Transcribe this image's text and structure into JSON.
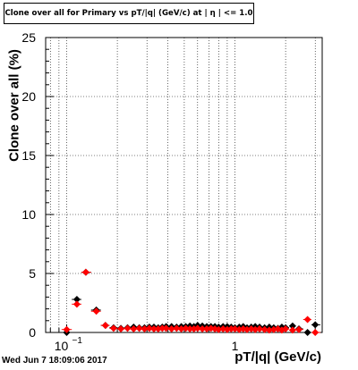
{
  "chart_data": {
    "type": "scatter",
    "title": "Clone  over all for Primary vs pT/|q| (GeV/c) at |  η | <= 1.0",
    "xlabel": "pT/|q| (GeV/c)",
    "ylabel": "Clone  over all (%)",
    "x_scale": "log",
    "xlim": [
      0.075,
      3.3
    ],
    "ylim": [
      0,
      25
    ],
    "grid": true,
    "y_ticks": [
      0,
      5,
      10,
      15,
      20,
      25
    ],
    "x_tick_labels": [
      {
        "value": 0.1,
        "label": "10^-1"
      },
      {
        "value": 1,
        "label": "1"
      }
    ],
    "series": [
      {
        "color": "#000000",
        "marker": "diamond",
        "x": [
          0.1,
          0.115,
          0.13,
          0.15,
          0.17,
          0.19,
          0.21,
          0.23,
          0.25,
          0.27,
          0.29,
          0.31,
          0.33,
          0.35,
          0.37,
          0.39,
          0.42,
          0.45,
          0.48,
          0.51,
          0.54,
          0.57,
          0.6,
          0.64,
          0.68,
          0.72,
          0.76,
          0.8,
          0.85,
          0.9,
          0.95,
          1.0,
          1.06,
          1.12,
          1.18,
          1.25,
          1.32,
          1.4,
          1.5,
          1.6,
          1.7,
          1.8,
          1.9,
          2.0,
          2.2,
          2.4,
          2.7,
          3.0
        ],
        "y": [
          0.0,
          2.8,
          5.1,
          1.9,
          0.6,
          0.4,
          0.35,
          0.4,
          0.45,
          0.4,
          0.4,
          0.45,
          0.45,
          0.4,
          0.45,
          0.5,
          0.5,
          0.45,
          0.5,
          0.5,
          0.55,
          0.5,
          0.6,
          0.55,
          0.5,
          0.5,
          0.5,
          0.45,
          0.5,
          0.5,
          0.45,
          0.4,
          0.45,
          0.5,
          0.4,
          0.45,
          0.5,
          0.45,
          0.4,
          0.45,
          0.4,
          0.35,
          0.45,
          0.4,
          0.55,
          0.3,
          0.0,
          0.65
        ]
      },
      {
        "color": "#ff0000",
        "marker": "diamond",
        "x": [
          0.1,
          0.115,
          0.13,
          0.15,
          0.17,
          0.19,
          0.21,
          0.23,
          0.25,
          0.27,
          0.29,
          0.31,
          0.33,
          0.35,
          0.37,
          0.39,
          0.42,
          0.45,
          0.48,
          0.51,
          0.54,
          0.57,
          0.6,
          0.64,
          0.68,
          0.72,
          0.76,
          0.8,
          0.85,
          0.9,
          0.95,
          1.0,
          1.06,
          1.12,
          1.18,
          1.25,
          1.32,
          1.4,
          1.5,
          1.6,
          1.7,
          1.8,
          1.9,
          2.0,
          2.2,
          2.4,
          2.7,
          3.0
        ],
        "y": [
          0.25,
          2.4,
          5.1,
          1.8,
          0.6,
          0.35,
          0.3,
          0.35,
          0.3,
          0.35,
          0.3,
          0.35,
          0.3,
          0.3,
          0.35,
          0.35,
          0.3,
          0.35,
          0.3,
          0.35,
          0.3,
          0.3,
          0.35,
          0.3,
          0.3,
          0.35,
          0.3,
          0.25,
          0.3,
          0.25,
          0.3,
          0.3,
          0.25,
          0.3,
          0.25,
          0.3,
          0.25,
          0.3,
          0.25,
          0.2,
          0.25,
          0.3,
          0.2,
          0.3,
          0.2,
          0.25,
          1.1,
          0.0
        ]
      }
    ]
  },
  "footer": {
    "timestamp": "Wed Jun  7 18:09:06 2017"
  }
}
